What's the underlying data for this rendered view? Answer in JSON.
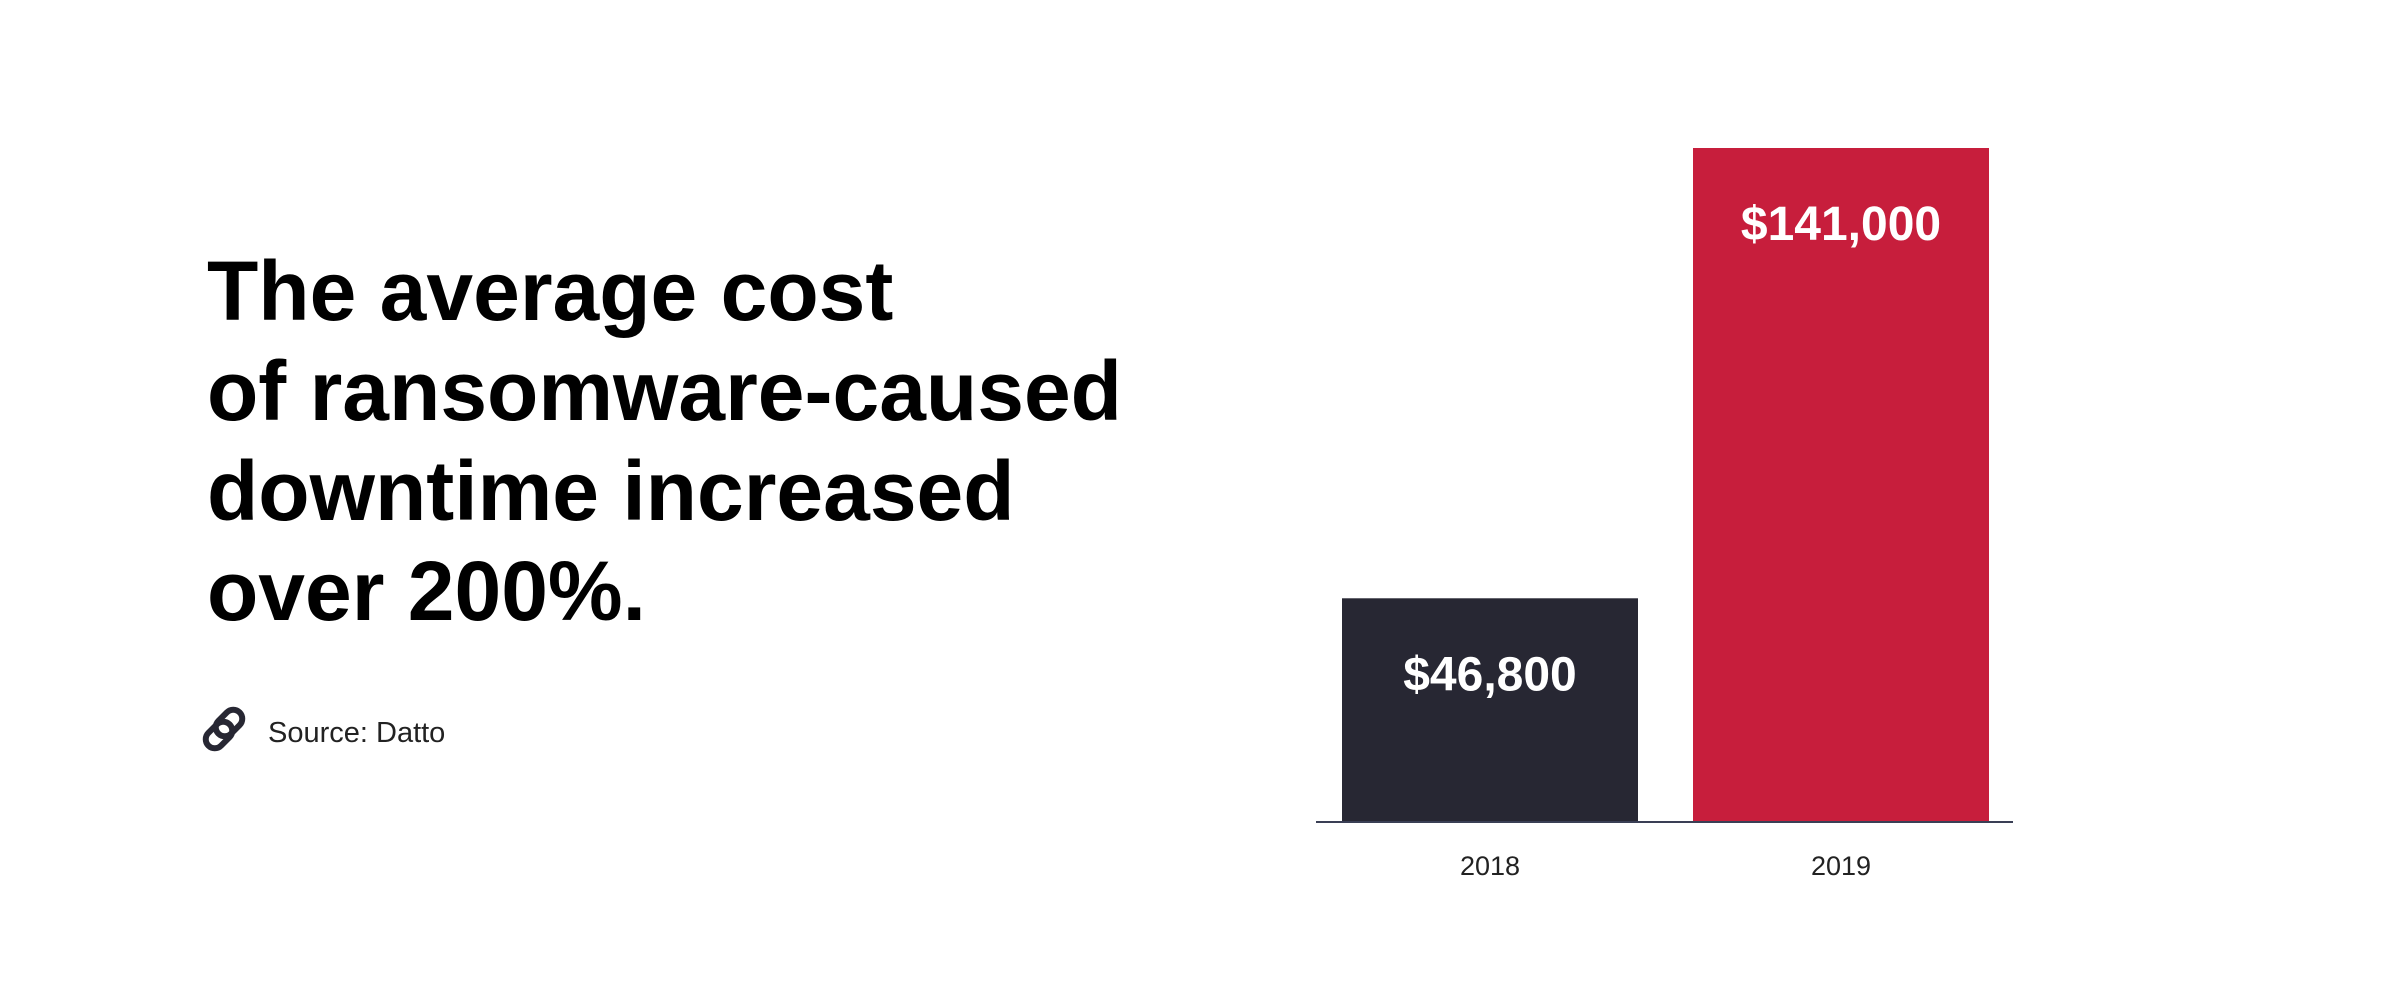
{
  "chart_data": {
    "type": "bar",
    "title": [
      "The average cost",
      "of ransomware-caused",
      "downtime increased",
      "over 200%."
    ],
    "source": "Source: Datto",
    "categories": [
      "2018",
      "2019"
    ],
    "values": [
      46800,
      141000
    ],
    "value_labels": [
      "$46,800",
      "$141,000"
    ],
    "colors": [
      "#272733",
      "#c71e3c"
    ],
    "ylim": [
      0,
      141000
    ]
  }
}
